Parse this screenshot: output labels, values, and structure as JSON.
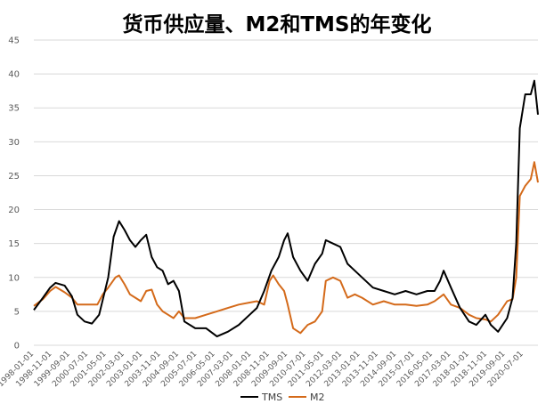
{
  "chart_data": {
    "type": "line",
    "title": "货币供应量、M2和TMS的年变化",
    "xlabel": "",
    "ylabel": "",
    "ylim": [
      0,
      45
    ],
    "yticks": [
      0,
      5,
      10,
      15,
      20,
      25,
      30,
      35,
      40,
      45
    ],
    "grid": true,
    "legend": "bottom",
    "x_start": "1998-01",
    "x_end": "2021-03",
    "xticks": [
      "1998-01-01",
      "1998-11-01",
      "1999-09-01",
      "2000-07-01",
      "2001-05-01",
      "2002-03-01",
      "2003-01-01",
      "2003-11-01",
      "2004-09-01",
      "2005-07-01",
      "2006-05-01",
      "2007-03-01",
      "2008-01-01",
      "2008-11-01",
      "2009-09-01",
      "2010-07-01",
      "2011-05-01",
      "2012-03-01",
      "2013-01-01",
      "2013-11-01",
      "2014-09-01",
      "2015-07-01",
      "2016-05-01",
      "2017-03-01",
      "2018-01-01",
      "2018-11-01",
      "2019-09-01",
      "2020-07-01"
    ],
    "series": [
      {
        "name": "TMS",
        "color": "#000000",
        "points": [
          [
            "1998-01",
            5.2
          ],
          [
            "1998-06",
            7.0
          ],
          [
            "1998-10",
            8.5
          ],
          [
            "1999-01",
            9.2
          ],
          [
            "1999-06",
            8.8
          ],
          [
            "1999-10",
            7.2
          ],
          [
            "2000-01",
            4.5
          ],
          [
            "2000-05",
            3.5
          ],
          [
            "2000-09",
            3.2
          ],
          [
            "2001-01",
            4.5
          ],
          [
            "2001-06",
            10.0
          ],
          [
            "2001-09",
            16.0
          ],
          [
            "2001-12",
            18.3
          ],
          [
            "2002-03",
            17.0
          ],
          [
            "2002-06",
            15.5
          ],
          [
            "2002-09",
            14.5
          ],
          [
            "2002-12",
            15.5
          ],
          [
            "2003-03",
            16.3
          ],
          [
            "2003-06",
            13.0
          ],
          [
            "2003-09",
            11.5
          ],
          [
            "2003-12",
            11.0
          ],
          [
            "2004-03",
            9.0
          ],
          [
            "2004-06",
            9.5
          ],
          [
            "2004-09",
            8.0
          ],
          [
            "2004-12",
            3.5
          ],
          [
            "2005-06",
            2.5
          ],
          [
            "2005-12",
            2.5
          ],
          [
            "2006-06",
            1.3
          ],
          [
            "2006-12",
            2.0
          ],
          [
            "2007-06",
            3.0
          ],
          [
            "2007-12",
            4.5
          ],
          [
            "2008-04",
            5.5
          ],
          [
            "2008-08",
            8.0
          ],
          [
            "2008-12",
            11.0
          ],
          [
            "2009-04",
            13.0
          ],
          [
            "2009-07",
            15.5
          ],
          [
            "2009-09",
            16.5
          ],
          [
            "2009-12",
            13.0
          ],
          [
            "2010-04",
            11.0
          ],
          [
            "2010-08",
            9.5
          ],
          [
            "2010-12",
            12.0
          ],
          [
            "2011-04",
            13.5
          ],
          [
            "2011-06",
            15.5
          ],
          [
            "2011-10",
            15.0
          ],
          [
            "2012-02",
            14.5
          ],
          [
            "2012-06",
            12.0
          ],
          [
            "2012-10",
            11.0
          ],
          [
            "2013-02",
            10.0
          ],
          [
            "2013-08",
            8.5
          ],
          [
            "2014-02",
            8.0
          ],
          [
            "2014-08",
            7.5
          ],
          [
            "2015-02",
            8.0
          ],
          [
            "2015-08",
            7.5
          ],
          [
            "2016-02",
            8.0
          ],
          [
            "2016-06",
            8.0
          ],
          [
            "2016-09",
            9.5
          ],
          [
            "2016-11",
            11.0
          ],
          [
            "2017-03",
            8.5
          ],
          [
            "2017-08",
            5.5
          ],
          [
            "2018-01",
            3.5
          ],
          [
            "2018-05",
            3.0
          ],
          [
            "2018-10",
            4.5
          ],
          [
            "2019-01",
            3.0
          ],
          [
            "2019-05",
            2.0
          ],
          [
            "2019-10",
            4.0
          ],
          [
            "2020-01",
            7.0
          ],
          [
            "2020-03",
            15.0
          ],
          [
            "2020-05",
            32.0
          ],
          [
            "2020-08",
            37.0
          ],
          [
            "2020-11",
            37.0
          ],
          [
            "2021-01",
            39.0
          ],
          [
            "2021-03",
            34.0
          ]
        ]
      },
      {
        "name": "M2",
        "color": "#D46A1A",
        "points": [
          [
            "1998-01",
            5.8
          ],
          [
            "1998-06",
            6.8
          ],
          [
            "1998-10",
            8.0
          ],
          [
            "1999-01",
            8.6
          ],
          [
            "1999-06",
            7.8
          ],
          [
            "1999-10",
            7.0
          ],
          [
            "2000-01",
            6.0
          ],
          [
            "2000-06",
            6.0
          ],
          [
            "2000-12",
            6.0
          ],
          [
            "2001-03",
            7.5
          ],
          [
            "2001-06",
            8.5
          ],
          [
            "2001-10",
            10.0
          ],
          [
            "2001-12",
            10.3
          ],
          [
            "2002-03",
            9.0
          ],
          [
            "2002-06",
            7.5
          ],
          [
            "2002-09",
            7.0
          ],
          [
            "2002-12",
            6.5
          ],
          [
            "2003-03",
            8.0
          ],
          [
            "2003-06",
            8.2
          ],
          [
            "2003-09",
            6.0
          ],
          [
            "2003-12",
            5.0
          ],
          [
            "2004-03",
            4.5
          ],
          [
            "2004-06",
            4.0
          ],
          [
            "2004-09",
            5.0
          ],
          [
            "2004-12",
            4.0
          ],
          [
            "2005-06",
            4.0
          ],
          [
            "2005-12",
            4.5
          ],
          [
            "2006-06",
            5.0
          ],
          [
            "2006-12",
            5.5
          ],
          [
            "2007-06",
            6.0
          ],
          [
            "2007-12",
            6.3
          ],
          [
            "2008-04",
            6.5
          ],
          [
            "2008-08",
            6.0
          ],
          [
            "2008-11",
            9.5
          ],
          [
            "2009-01",
            10.3
          ],
          [
            "2009-04",
            9.0
          ],
          [
            "2009-07",
            8.0
          ],
          [
            "2009-09",
            6.0
          ],
          [
            "2009-12",
            2.5
          ],
          [
            "2010-04",
            1.8
          ],
          [
            "2010-08",
            3.0
          ],
          [
            "2010-12",
            3.5
          ],
          [
            "2011-04",
            5.0
          ],
          [
            "2011-06",
            9.5
          ],
          [
            "2011-10",
            10.0
          ],
          [
            "2012-02",
            9.5
          ],
          [
            "2012-06",
            7.0
          ],
          [
            "2012-10",
            7.5
          ],
          [
            "2013-02",
            7.0
          ],
          [
            "2013-08",
            6.0
          ],
          [
            "2014-02",
            6.5
          ],
          [
            "2014-08",
            6.0
          ],
          [
            "2015-02",
            6.0
          ],
          [
            "2015-08",
            5.8
          ],
          [
            "2016-02",
            6.0
          ],
          [
            "2016-06",
            6.5
          ],
          [
            "2016-11",
            7.5
          ],
          [
            "2017-03",
            6.0
          ],
          [
            "2017-08",
            5.5
          ],
          [
            "2018-01",
            4.5
          ],
          [
            "2018-05",
            4.0
          ],
          [
            "2018-10",
            3.8
          ],
          [
            "2019-01",
            3.5
          ],
          [
            "2019-05",
            4.5
          ],
          [
            "2019-10",
            6.5
          ],
          [
            "2020-01",
            6.8
          ],
          [
            "2020-03",
            10.0
          ],
          [
            "2020-05",
            22.0
          ],
          [
            "2020-08",
            23.5
          ],
          [
            "2020-11",
            24.5
          ],
          [
            "2021-01",
            27.0
          ],
          [
            "2021-03",
            24.0
          ]
        ]
      }
    ]
  }
}
